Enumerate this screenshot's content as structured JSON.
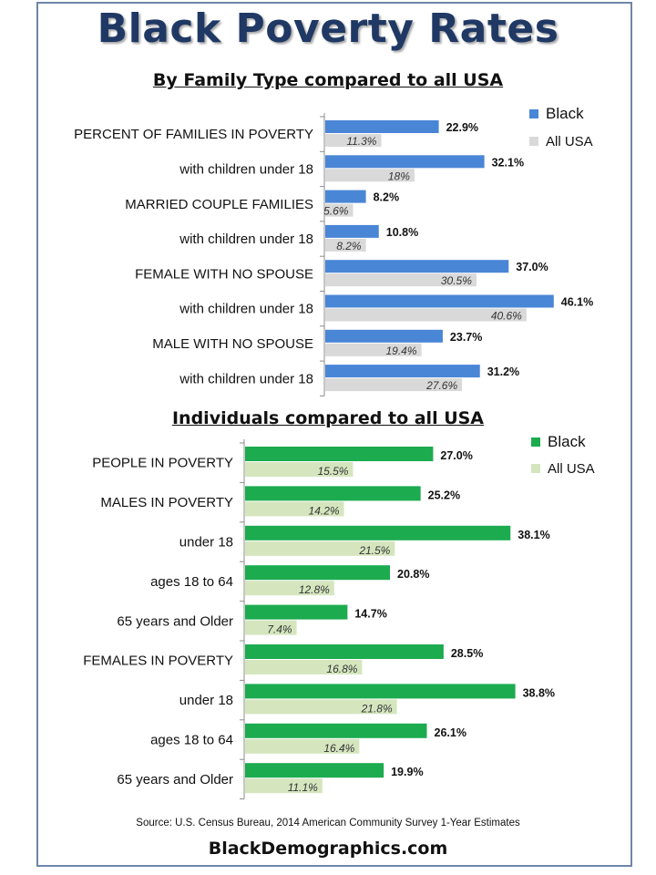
{
  "title": "Black Poverty Rates",
  "footer": {
    "source": "Source: U.S. Census Bureau, 2014 American Community Survey 1-Year Estimates",
    "brand": "BlackDemographics.com"
  },
  "colors": {
    "title": "#1f3864",
    "family_black": "#4a86d6",
    "family_all": "#d9d9d9",
    "individual_black": "#1cab4f",
    "individual_all": "#d5e6bf"
  },
  "chart_data": [
    {
      "type": "bar",
      "orientation": "horizontal",
      "title": "By Family Type compared to all USA",
      "categories": [
        "PERCENT OF FAMILIES IN POVERTY",
        "with children under 18",
        "MARRIED COUPLE FAMILIES",
        "with children under 18",
        "FEMALE WITH NO SPOUSE",
        "with children under 18",
        "MALE WITH NO SPOUSE",
        "with children under 18"
      ],
      "series": [
        {
          "name": "Black",
          "values": [
            22.9,
            32.1,
            8.2,
            10.8,
            37.0,
            46.1,
            23.7,
            31.2
          ],
          "labels": [
            "22.9%",
            "32.1%",
            "8.2%",
            "10.8%",
            "37.0%",
            "46.1%",
            "23.7%",
            "31.2%"
          ]
        },
        {
          "name": "All USA",
          "values": [
            11.3,
            18,
            5.6,
            8.2,
            30.5,
            40.6,
            19.4,
            27.6
          ],
          "labels": [
            "11.3%",
            "18%",
            "5.6%",
            "8.2%",
            "30.5%",
            "40.6%",
            "19.4%",
            "27.6%"
          ]
        }
      ],
      "xlim": [
        0,
        50
      ],
      "legend": "top-right"
    },
    {
      "type": "bar",
      "orientation": "horizontal",
      "title": "Individuals compared to all USA",
      "categories": [
        "PEOPLE IN POVERTY",
        "MALES IN POVERTY",
        "under 18",
        "ages 18 to 64",
        "65 years and Older",
        "FEMALES IN POVERTY",
        "under 18",
        "ages 18 to 64",
        "65 years and Older"
      ],
      "series": [
        {
          "name": "Black",
          "values": [
            27.0,
            25.2,
            38.1,
            20.8,
            14.7,
            28.5,
            38.8,
            26.1,
            19.9
          ],
          "labels": [
            "27.0%",
            "25.2%",
            "38.1%",
            "20.8%",
            "14.7%",
            "28.5%",
            "38.8%",
            "26.1%",
            "19.9%"
          ]
        },
        {
          "name": "All USA",
          "values": [
            15.5,
            14.2,
            21.5,
            12.8,
            7.4,
            16.8,
            21.8,
            16.4,
            11.1
          ],
          "labels": [
            "15.5%",
            "14.2%",
            "21.5%",
            "12.8%",
            "7.4%",
            "16.8%",
            "21.8%",
            "16.4%",
            "11.1%"
          ]
        }
      ],
      "xlim": [
        0,
        45
      ],
      "legend": "top-right"
    }
  ]
}
